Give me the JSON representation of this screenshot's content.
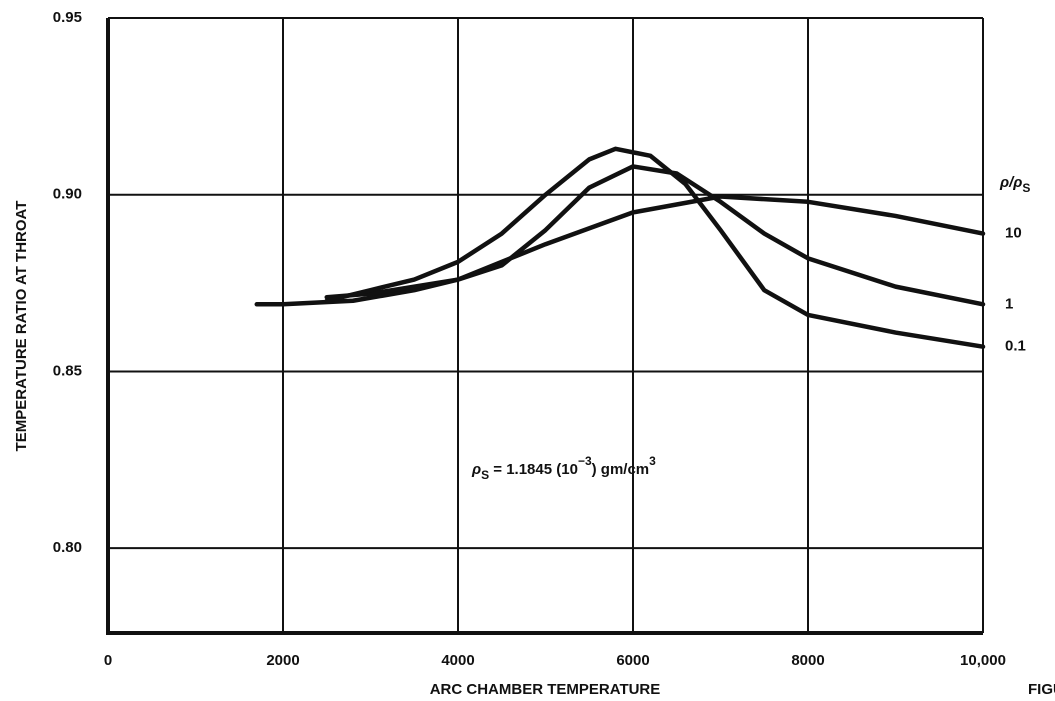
{
  "chart_data": {
    "type": "line",
    "x_label": "ARC CHAMBER TEMPERATURE",
    "y_label": "TEMPERATURE RATIO AT THROAT",
    "legend_title": [
      "ρ/ρ",
      "S"
    ],
    "annotation": [
      "ρ",
      "S",
      " = 1.1845 (10",
      "−3",
      ") gm/cm",
      "3"
    ],
    "figure_label": "FIGU",
    "xlim": [
      0,
      10000
    ],
    "xticks": [
      0,
      2000,
      4000,
      6000,
      8000,
      {
        "value": 10000,
        "label": "10,000"
      }
    ],
    "ylim": [
      0.776,
      0.95
    ],
    "yticks": [
      0.95,
      {
        "value": 0.9,
        "label": "0.90"
      },
      0.85,
      {
        "value": 0.8,
        "label": "0.80"
      }
    ],
    "grid": true,
    "series": [
      {
        "name": "10",
        "color": "#111111",
        "x": [
          1700,
          2000,
          2800,
          3500,
          4000,
          5000,
          6000,
          7000,
          8000,
          9000,
          10000
        ],
        "values": [
          0.869,
          0.869,
          0.87,
          0.873,
          0.876,
          0.886,
          0.895,
          0.8995,
          0.898,
          0.894,
          0.889
        ]
      },
      {
        "name": "1",
        "color": "#111111",
        "x": [
          2500,
          3000,
          4000,
          4500,
          5000,
          5500,
          6000,
          6500,
          7000,
          7500,
          8000,
          9000,
          10000
        ],
        "values": [
          0.871,
          0.872,
          0.876,
          0.88,
          0.89,
          0.902,
          0.908,
          0.906,
          0.898,
          0.889,
          0.882,
          0.874,
          0.869
        ]
      },
      {
        "name": "0.1",
        "color": "#111111",
        "x": [
          2500,
          3000,
          3500,
          4000,
          4500,
          5000,
          5500,
          5800,
          6200,
          6600,
          7000,
          7500,
          8000,
          9000,
          10000
        ],
        "values": [
          0.87,
          0.873,
          0.876,
          0.881,
          0.889,
          0.9,
          0.91,
          0.913,
          0.911,
          0.903,
          0.89,
          0.873,
          0.866,
          0.861,
          0.857
        ]
      }
    ]
  }
}
